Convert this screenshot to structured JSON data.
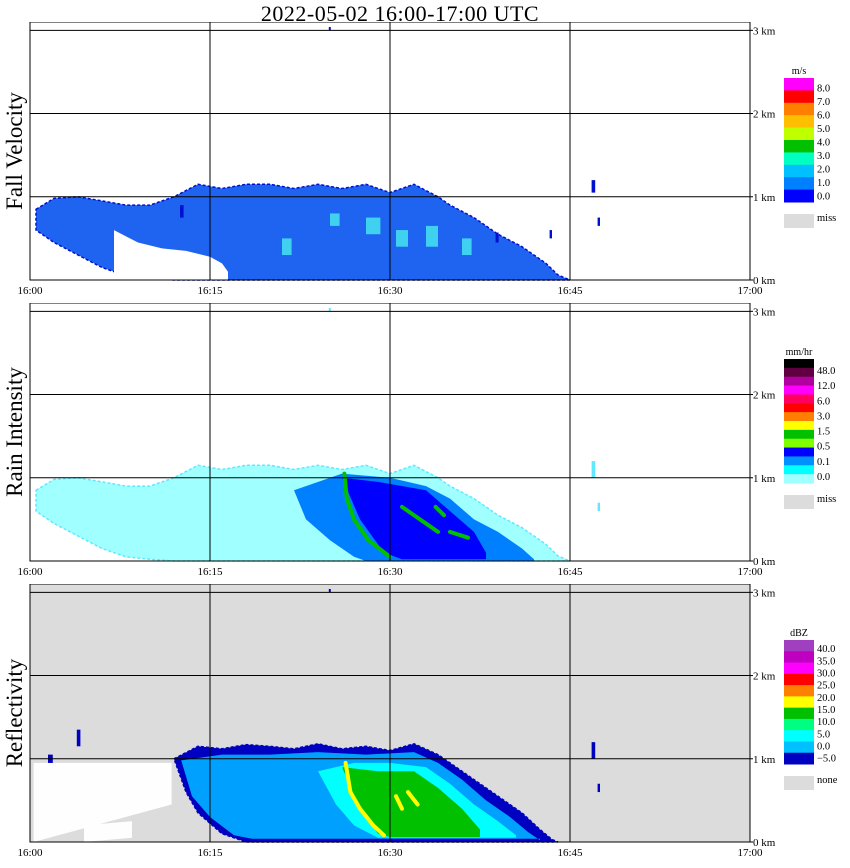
{
  "title": "2022-05-02   16:00-17:00 UTC",
  "chart_data": [
    {
      "type": "heatmap",
      "ylabel": "Fall Velocity",
      "x_ticks": [
        "16:00",
        "16:15",
        "16:30",
        "16:45",
        "17:00"
      ],
      "y_ticks": [
        "0 km",
        "1 km",
        "2 km",
        "3 km"
      ],
      "xlim": [
        0,
        60
      ],
      "ylim": [
        0,
        3.1
      ],
      "grid": true,
      "colorbar": {
        "unit": "m/s",
        "labels": [
          "8.0",
          "7.0",
          "6.0",
          "5.0",
          "4.0",
          "3.0",
          "2.0",
          "1.0",
          "0.0"
        ],
        "colors": [
          "#ff00ff",
          "#ff0000",
          "#ff7f00",
          "#ffbf00",
          "#bfff00",
          "#00c000",
          "#00ffc0",
          "#00c0ff",
          "#0080ff",
          "#0000ff"
        ],
        "missing_label": "miss",
        "missing_color": "#dcdcdc"
      },
      "background": "#ffffff",
      "echo_color": "#1e64f0",
      "echo_edge_color": "#0010d0",
      "highlight_color": "#40d0f0",
      "top_profile": [
        [
          0.5,
          0.85
        ],
        [
          2,
          0.98
        ],
        [
          4,
          1.0
        ],
        [
          6,
          0.95
        ],
        [
          8,
          0.9
        ],
        [
          10,
          0.9
        ],
        [
          12,
          1.0
        ],
        [
          14,
          1.15
        ],
        [
          16,
          1.1
        ],
        [
          18,
          1.15
        ],
        [
          20,
          1.15
        ],
        [
          22,
          1.1
        ],
        [
          24,
          1.15
        ],
        [
          26,
          1.1
        ],
        [
          28,
          1.15
        ],
        [
          30,
          1.05
        ],
        [
          32,
          1.15
        ],
        [
          34,
          1.0
        ],
        [
          35,
          0.9
        ],
        [
          37,
          0.75
        ],
        [
          39,
          0.55
        ],
        [
          41,
          0.4
        ],
        [
          43,
          0.2
        ],
        [
          44,
          0.06
        ],
        [
          45,
          0
        ]
      ],
      "bottom_profile": [
        [
          0.5,
          0.6
        ],
        [
          2,
          0.45
        ],
        [
          4,
          0.3
        ],
        [
          6,
          0.15
        ],
        [
          8,
          0.05
        ],
        [
          10,
          0.02
        ],
        [
          12,
          0
        ],
        [
          45,
          0
        ]
      ],
      "clear_profile": [
        [
          7,
          0.6
        ],
        [
          9,
          0.45
        ],
        [
          11,
          0.38
        ],
        [
          13,
          0.35
        ],
        [
          15,
          0.28
        ],
        [
          16,
          0.2
        ],
        [
          16.5,
          0.1
        ]
      ],
      "patches": [
        [
          28,
          0.55,
          1.2,
          0.2
        ],
        [
          30.5,
          0.4,
          1.0,
          0.2
        ],
        [
          33,
          0.4,
          1.0,
          0.25
        ],
        [
          21,
          0.3,
          0.8,
          0.2
        ],
        [
          25,
          0.65,
          0.8,
          0.15
        ],
        [
          36,
          0.3,
          0.8,
          0.2
        ]
      ],
      "specks": [
        [
          46.8,
          1.05,
          0.3,
          0.15
        ],
        [
          47.3,
          0.65,
          0.2,
          0.1
        ],
        [
          38.8,
          0.45,
          0.25,
          0.12
        ],
        [
          43.3,
          0.5,
          0.2,
          0.1
        ],
        [
          12.5,
          0.75,
          0.3,
          0.15
        ],
        [
          24.9,
          3.0,
          0.15,
          0.04
        ]
      ]
    },
    {
      "type": "heatmap",
      "ylabel": "Rain Intensity",
      "x_ticks": [
        "16:00",
        "16:15",
        "16:30",
        "16:45",
        "17:00"
      ],
      "y_ticks": [
        "0 km",
        "1 km",
        "2 km",
        "3 km"
      ],
      "xlim": [
        0,
        60
      ],
      "ylim": [
        0,
        3.1
      ],
      "grid": true,
      "colorbar": {
        "unit": "mm/hr",
        "labels": [
          "48.0",
          "12.0",
          "6.0",
          "3.0",
          "1.5",
          "0.5",
          "0.1",
          "0.0"
        ],
        "colors": [
          "#000000",
          "#600040",
          "#b000a0",
          "#ff00ff",
          "#ff0060",
          "#ff0000",
          "#ff8000",
          "#ffff00",
          "#00c000",
          "#80ff00",
          "#0000ff",
          "#0090ff",
          "#00ffff",
          "#a0ffff"
        ],
        "missing_label": "miss",
        "missing_color": "#dcdcdc"
      },
      "background": "#ffffff",
      "echo_color": "#a0ffff",
      "echo_edge_color": "#60e8ff",
      "inner_color": "#0080ff",
      "core_color": "#0000ff",
      "streak_color": "#00c000",
      "top_profile": [
        [
          0.5,
          0.85
        ],
        [
          2,
          0.98
        ],
        [
          4,
          1.0
        ],
        [
          6,
          0.95
        ],
        [
          8,
          0.9
        ],
        [
          10,
          0.9
        ],
        [
          12,
          1.0
        ],
        [
          14,
          1.15
        ],
        [
          16,
          1.1
        ],
        [
          18,
          1.15
        ],
        [
          20,
          1.15
        ],
        [
          22,
          1.1
        ],
        [
          24,
          1.15
        ],
        [
          26,
          1.1
        ],
        [
          28,
          1.15
        ],
        [
          30,
          1.05
        ],
        [
          32,
          1.15
        ],
        [
          34,
          1.0
        ],
        [
          35,
          0.9
        ],
        [
          37,
          0.75
        ],
        [
          39,
          0.55
        ],
        [
          41,
          0.4
        ],
        [
          43,
          0.2
        ],
        [
          44,
          0.06
        ],
        [
          45,
          0
        ]
      ],
      "bottom_profile": [
        [
          0.5,
          0.6
        ],
        [
          2,
          0.45
        ],
        [
          4,
          0.3
        ],
        [
          6,
          0.15
        ],
        [
          8,
          0.05
        ],
        [
          10,
          0.02
        ],
        [
          12,
          0
        ],
        [
          45,
          0
        ]
      ],
      "inner_profile": [
        [
          22,
          0.85
        ],
        [
          26,
          1.05
        ],
        [
          30,
          1.0
        ],
        [
          33,
          0.9
        ],
        [
          35,
          0.75
        ],
        [
          37,
          0.5
        ],
        [
          39,
          0.35
        ],
        [
          41,
          0.15
        ],
        [
          42,
          0.02
        ]
      ],
      "inner_bottom": [
        [
          22,
          0.85
        ],
        [
          23,
          0.5
        ],
        [
          25,
          0.25
        ],
        [
          27,
          0.05
        ],
        [
          28,
          0
        ],
        [
          42,
          0
        ]
      ],
      "core_profile": [
        [
          26,
          1.0
        ],
        [
          29,
          0.95
        ],
        [
          33,
          0.85
        ],
        [
          35,
          0.6
        ],
        [
          37,
          0.35
        ],
        [
          38,
          0.1
        ]
      ],
      "core_bottom": [
        [
          26,
          1.0
        ],
        [
          27.5,
          0.5
        ],
        [
          29.5,
          0.1
        ],
        [
          31,
          0.02
        ],
        [
          38,
          0.02
        ]
      ],
      "streaks": [
        [
          [
            26.2,
            1.05
          ],
          [
            26.4,
            0.75
          ],
          [
            27,
            0.5
          ],
          [
            28.2,
            0.25
          ],
          [
            30,
            0.05
          ]
        ],
        [
          [
            31,
            0.65
          ],
          [
            32.5,
            0.5
          ],
          [
            34,
            0.35
          ]
        ],
        [
          [
            33.8,
            0.65
          ],
          [
            34.5,
            0.55
          ]
        ],
        [
          [
            35,
            0.35
          ],
          [
            36.5,
            0.28
          ]
        ]
      ],
      "specks": [
        [
          46.8,
          1.0,
          0.3,
          0.2
        ],
        [
          47.3,
          0.6,
          0.2,
          0.1
        ],
        [
          24.9,
          3.0,
          0.15,
          0.04
        ]
      ]
    },
    {
      "type": "heatmap",
      "ylabel": "Reflectivity",
      "x_ticks": [
        "16:00",
        "16:15",
        "16:30",
        "16:45",
        "17:00"
      ],
      "y_ticks": [
        "0 km",
        "1 km",
        "2 km",
        "3 km"
      ],
      "xlim": [
        0,
        60
      ],
      "ylim": [
        0,
        3.1
      ],
      "grid": true,
      "colorbar": {
        "unit": "dBZ",
        "labels": [
          "40.0",
          "35.0",
          "30.0",
          "25.0",
          "20.0",
          "15.0",
          "10.0",
          "5.0",
          "0.0",
          "−5.0"
        ],
        "colors": [
          "#a040c0",
          "#c000c0",
          "#ff00ff",
          "#ff0000",
          "#ff8000",
          "#ffff00",
          "#00c000",
          "#00ff80",
          "#00ffff",
          "#00c0ff",
          "#0000c0"
        ],
        "missing_label": "none",
        "missing_color": "#dcdcdc"
      },
      "background": "#dcdcdc",
      "ground_echo_color": "#ffffff",
      "echo_color": "#0000c0",
      "outer_color": "#00a0ff",
      "inner_color": "#00ffff",
      "core_color": "#00c000",
      "streak_color": "#ffff00",
      "top_profile": [
        [
          12,
          1.0
        ],
        [
          14,
          1.15
        ],
        [
          16,
          1.12
        ],
        [
          18,
          1.17
        ],
        [
          20,
          1.15
        ],
        [
          22,
          1.12
        ],
        [
          24,
          1.18
        ],
        [
          26,
          1.12
        ],
        [
          28,
          1.15
        ],
        [
          30,
          1.1
        ],
        [
          32,
          1.18
        ],
        [
          34,
          1.05
        ],
        [
          35,
          0.95
        ],
        [
          37,
          0.75
        ],
        [
          39,
          0.55
        ],
        [
          41,
          0.35
        ],
        [
          42.5,
          0.15
        ],
        [
          43.5,
          0.03
        ],
        [
          44,
          0
        ]
      ],
      "bottom_profile": [
        [
          12,
          1.0
        ],
        [
          13,
          0.6
        ],
        [
          14,
          0.35
        ],
        [
          16,
          0.1
        ],
        [
          18,
          0
        ],
        [
          44,
          0
        ]
      ],
      "outer_profile": [
        [
          12.6,
          0.98
        ],
        [
          16,
          1.05
        ],
        [
          20,
          1.05
        ],
        [
          24,
          1.08
        ],
        [
          28,
          1.05
        ],
        [
          32,
          1.08
        ],
        [
          34,
          0.95
        ],
        [
          36,
          0.75
        ],
        [
          38,
          0.5
        ],
        [
          40,
          0.3
        ],
        [
          41.5,
          0.12
        ],
        [
          42.5,
          0.02
        ]
      ],
      "outer_bottom": [
        [
          12.6,
          0.98
        ],
        [
          13.5,
          0.55
        ],
        [
          15,
          0.3
        ],
        [
          17,
          0.08
        ],
        [
          18.5,
          0.04
        ],
        [
          42.5,
          0.04
        ]
      ],
      "inner_profile": [
        [
          24,
          0.85
        ],
        [
          27,
          0.95
        ],
        [
          30,
          0.95
        ],
        [
          33,
          0.9
        ],
        [
          35,
          0.7
        ],
        [
          37,
          0.45
        ],
        [
          39,
          0.25
        ],
        [
          40.5,
          0.08
        ]
      ],
      "inner_bottom": [
        [
          24,
          0.85
        ],
        [
          25.5,
          0.45
        ],
        [
          27,
          0.2
        ],
        [
          29,
          0.05
        ],
        [
          40.5,
          0.05
        ]
      ],
      "core_profile": [
        [
          26,
          0.9
        ],
        [
          29,
          0.85
        ],
        [
          32,
          0.85
        ],
        [
          34,
          0.65
        ],
        [
          36,
          0.4
        ],
        [
          37.5,
          0.15
        ]
      ],
      "core_bottom": [
        [
          26,
          0.9
        ],
        [
          27.5,
          0.4
        ],
        [
          29,
          0.1
        ],
        [
          30,
          0.06
        ],
        [
          37.5,
          0.06
        ]
      ],
      "streaks": [
        [
          [
            26.3,
            0.95
          ],
          [
            26.7,
            0.6
          ],
          [
            27.5,
            0.4
          ],
          [
            28.6,
            0.2
          ],
          [
            29.5,
            0.08
          ]
        ],
        [
          [
            31.5,
            0.6
          ],
          [
            32.3,
            0.45
          ]
        ],
        [
          [
            30.5,
            0.55
          ],
          [
            31,
            0.4
          ]
        ]
      ],
      "ground_patches": [
        [
          0.3,
          0.95,
          11.5,
          0.95,
          0.45
        ],
        [
          4.5,
          0.2,
          4,
          0.25,
          0.05
        ],
        [
          34,
          0.05,
          10.5,
          0.0,
          0.0
        ]
      ],
      "specks": [
        [
          46.8,
          1.0,
          0.3,
          0.2
        ],
        [
          47.3,
          0.6,
          0.2,
          0.1
        ],
        [
          3.9,
          1.15,
          0.3,
          0.2
        ],
        [
          1.5,
          0.95,
          0.4,
          0.1
        ],
        [
          24.9,
          3.0,
          0.15,
          0.04
        ]
      ]
    }
  ]
}
